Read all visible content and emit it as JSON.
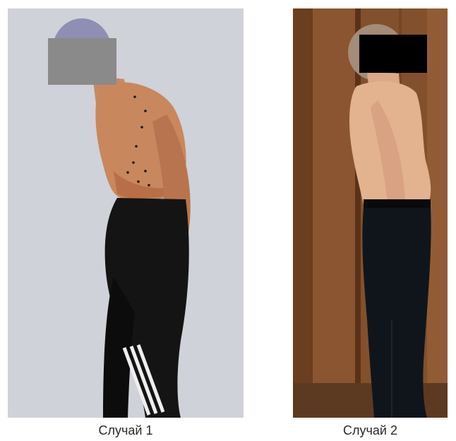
{
  "figure": {
    "panels": [
      {
        "caption": "Случай 1",
        "background": "#cfd2d8",
        "face_cover_color": "#8a8a8a",
        "skin_color": "#c9875d",
        "trousers_color": "#141414"
      },
      {
        "caption": "Случай 2",
        "background": "#7a4a26",
        "face_cover_color": "#000000",
        "skin_color": "#e3b28f",
        "trousers_color": "#10151c"
      }
    ]
  }
}
